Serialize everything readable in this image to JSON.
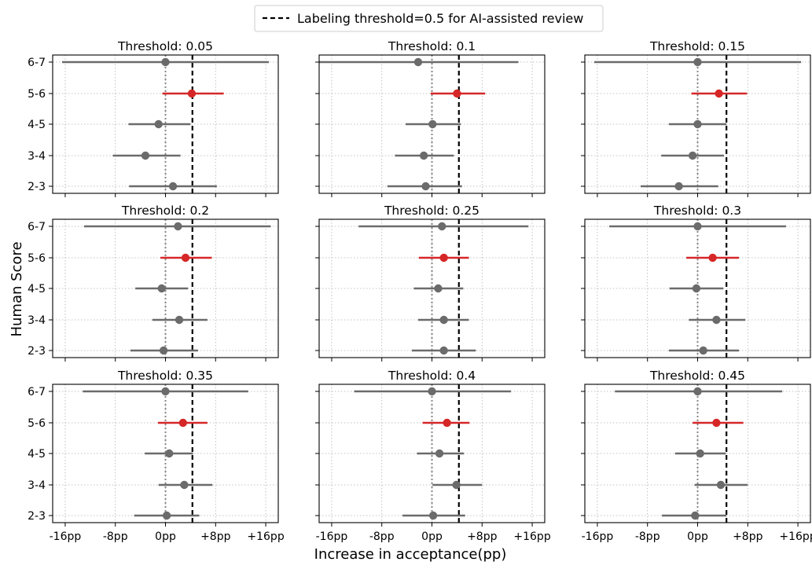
{
  "chart_data": {
    "type": "errorbar",
    "legend": {
      "label": "Labeling threshold=0.5 for AI-assisted review",
      "position": "top-center"
    },
    "xlabel": "Increase in acceptance(pp)",
    "ylabel": "Human Score",
    "categories": [
      "2-3",
      "3-4",
      "4-5",
      "5-6",
      "6-7"
    ],
    "highlight_category": "5-6",
    "colors": {
      "normal": "#6b6b6b",
      "highlight": "#d62728",
      "threshold_line": "#000000",
      "zero_line": "#888888"
    },
    "x_ticks": [
      {
        "value": -16,
        "label": "-16pp"
      },
      {
        "value": -8,
        "label": "-8pp"
      },
      {
        "value": 0,
        "label": "0pp"
      },
      {
        "value": 8,
        "label": "+8pp"
      },
      {
        "value": 16,
        "label": "+16pp"
      }
    ],
    "grid": true,
    "panels": [
      {
        "title": "Threshold: 0.05",
        "xlim": [
          -18,
          18
        ],
        "threshold_x": 4.3,
        "points": [
          {
            "cat": "6-7",
            "value": 0.0,
            "lo": -16.5,
            "hi": 16.5
          },
          {
            "cat": "5-6",
            "value": 4.2,
            "lo": -0.5,
            "hi": 9.3
          },
          {
            "cat": "4-5",
            "value": -1.1,
            "lo": -5.9,
            "hi": 4.0
          },
          {
            "cat": "3-4",
            "value": -3.2,
            "lo": -8.4,
            "hi": 2.4
          },
          {
            "cat": "2-3",
            "value": 1.2,
            "lo": -5.8,
            "hi": 8.2
          }
        ]
      },
      {
        "title": "Threshold: 0.1",
        "xlim": [
          -18,
          18
        ],
        "threshold_x": 4.3,
        "points": [
          {
            "cat": "6-7",
            "value": -2.2,
            "lo": -18,
            "hi": 13.8
          },
          {
            "cat": "5-6",
            "value": 4.0,
            "lo": -0.2,
            "hi": 8.5
          },
          {
            "cat": "4-5",
            "value": 0.1,
            "lo": -4.2,
            "hi": 4.6
          },
          {
            "cat": "3-4",
            "value": -1.3,
            "lo": -5.9,
            "hi": 3.5
          },
          {
            "cat": "2-3",
            "value": -1.0,
            "lo": -7.1,
            "hi": 4.8
          }
        ]
      },
      {
        "title": "Threshold: 0.15",
        "xlim": [
          -18,
          18
        ],
        "threshold_x": 4.6,
        "points": [
          {
            "cat": "6-7",
            "value": 0.0,
            "lo": -16.5,
            "hi": 16.5
          },
          {
            "cat": "5-6",
            "value": 3.4,
            "lo": -1.0,
            "hi": 7.9
          },
          {
            "cat": "4-5",
            "value": 0.0,
            "lo": -4.6,
            "hi": 4.6
          },
          {
            "cat": "3-4",
            "value": -0.8,
            "lo": -5.8,
            "hi": 4.2
          },
          {
            "cat": "2-3",
            "value": -3.0,
            "lo": -9.1,
            "hi": 3.3
          }
        ]
      },
      {
        "title": "Threshold: 0.2",
        "xlim": [
          -18,
          18
        ],
        "threshold_x": 4.3,
        "points": [
          {
            "cat": "6-7",
            "value": 2.0,
            "lo": -13.0,
            "hi": 16.8
          },
          {
            "cat": "5-6",
            "value": 3.2,
            "lo": -0.8,
            "hi": 7.4
          },
          {
            "cat": "4-5",
            "value": -0.6,
            "lo": -4.8,
            "hi": 3.6
          },
          {
            "cat": "3-4",
            "value": 2.2,
            "lo": -2.1,
            "hi": 6.7
          },
          {
            "cat": "2-3",
            "value": -0.3,
            "lo": -5.6,
            "hi": 5.2
          }
        ]
      },
      {
        "title": "Threshold: 0.25",
        "xlim": [
          -18,
          18
        ],
        "threshold_x": 4.3,
        "points": [
          {
            "cat": "6-7",
            "value": 1.6,
            "lo": -11.7,
            "hi": 15.4
          },
          {
            "cat": "5-6",
            "value": 1.9,
            "lo": -2.1,
            "hi": 5.9
          },
          {
            "cat": "4-5",
            "value": 1.0,
            "lo": -2.9,
            "hi": 5.0
          },
          {
            "cat": "3-4",
            "value": 1.9,
            "lo": -2.2,
            "hi": 5.9
          },
          {
            "cat": "2-3",
            "value": 1.9,
            "lo": -3.2,
            "hi": 7.0
          }
        ]
      },
      {
        "title": "Threshold: 0.3",
        "xlim": [
          -18,
          18
        ],
        "threshold_x": 4.6,
        "points": [
          {
            "cat": "6-7",
            "value": 0.0,
            "lo": -14.1,
            "hi": 14.1
          },
          {
            "cat": "5-6",
            "value": 2.4,
            "lo": -1.8,
            "hi": 6.6
          },
          {
            "cat": "4-5",
            "value": -0.2,
            "lo": -4.5,
            "hi": 4.1
          },
          {
            "cat": "3-4",
            "value": 3.0,
            "lo": -1.4,
            "hi": 7.6
          },
          {
            "cat": "2-3",
            "value": 0.9,
            "lo": -4.6,
            "hi": 6.6
          }
        ]
      },
      {
        "title": "Threshold: 0.35",
        "xlim": [
          -18,
          18
        ],
        "threshold_x": 4.3,
        "points": [
          {
            "cat": "6-7",
            "value": 0.0,
            "lo": -13.2,
            "hi": 13.2
          },
          {
            "cat": "5-6",
            "value": 2.8,
            "lo": -1.2,
            "hi": 6.7
          },
          {
            "cat": "4-5",
            "value": 0.6,
            "lo": -3.3,
            "hi": 4.4
          },
          {
            "cat": "3-4",
            "value": 3.0,
            "lo": -1.1,
            "hi": 7.5
          },
          {
            "cat": "2-3",
            "value": 0.2,
            "lo": -5.0,
            "hi": 5.4
          }
        ]
      },
      {
        "title": "Threshold: 0.4",
        "xlim": [
          -18,
          18
        ],
        "threshold_x": 4.3,
        "points": [
          {
            "cat": "6-7",
            "value": 0.0,
            "lo": -12.4,
            "hi": 12.6
          },
          {
            "cat": "5-6",
            "value": 2.4,
            "lo": -1.5,
            "hi": 6.0
          },
          {
            "cat": "4-5",
            "value": 1.2,
            "lo": -2.4,
            "hi": 5.1
          },
          {
            "cat": "3-4",
            "value": 3.9,
            "lo": 0.1,
            "hi": 8.0
          },
          {
            "cat": "2-3",
            "value": 0.2,
            "lo": -4.7,
            "hi": 5.3
          }
        ]
      },
      {
        "title": "Threshold: 0.45",
        "xlim": [
          -18,
          18
        ],
        "threshold_x": 4.6,
        "points": [
          {
            "cat": "6-7",
            "value": 0.0,
            "lo": -13.2,
            "hi": 13.5
          },
          {
            "cat": "5-6",
            "value": 3.0,
            "lo": -0.8,
            "hi": 7.3
          },
          {
            "cat": "4-5",
            "value": 0.4,
            "lo": -3.6,
            "hi": 4.5
          },
          {
            "cat": "3-4",
            "value": 3.7,
            "lo": -0.5,
            "hi": 8.0
          },
          {
            "cat": "2-3",
            "value": -0.4,
            "lo": -5.7,
            "hi": 4.6
          }
        ]
      }
    ]
  }
}
